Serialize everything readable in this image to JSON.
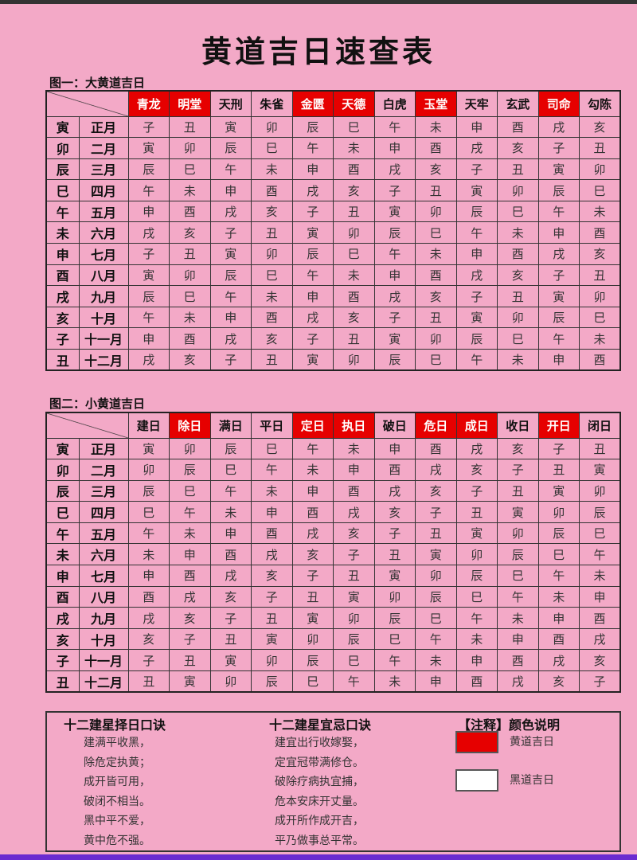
{
  "title": "黄道吉日速查表",
  "table1": {
    "caption": "图一：大黄道吉日",
    "headers": [
      {
        "label": "青龙",
        "auspicious": true
      },
      {
        "label": "明堂",
        "auspicious": true
      },
      {
        "label": "天刑",
        "auspicious": false
      },
      {
        "label": "朱雀",
        "auspicious": false
      },
      {
        "label": "金匮",
        "auspicious": true
      },
      {
        "label": "天德",
        "auspicious": true
      },
      {
        "label": "白虎",
        "auspicious": false
      },
      {
        "label": "玉堂",
        "auspicious": true
      },
      {
        "label": "天牢",
        "auspicious": false
      },
      {
        "label": "玄武",
        "auspicious": false
      },
      {
        "label": "司命",
        "auspicious": true
      },
      {
        "label": "勾陈",
        "auspicious": false
      }
    ],
    "rows": [
      {
        "branch": "寅",
        "month": "正月",
        "cells": [
          "子",
          "丑",
          "寅",
          "卯",
          "辰",
          "巳",
          "午",
          "未",
          "申",
          "酉",
          "戌",
          "亥"
        ]
      },
      {
        "branch": "卯",
        "month": "二月",
        "cells": [
          "寅",
          "卯",
          "辰",
          "巳",
          "午",
          "未",
          "申",
          "酉",
          "戌",
          "亥",
          "子",
          "丑"
        ]
      },
      {
        "branch": "辰",
        "month": "三月",
        "cells": [
          "辰",
          "巳",
          "午",
          "未",
          "申",
          "酉",
          "戌",
          "亥",
          "子",
          "丑",
          "寅",
          "卯"
        ]
      },
      {
        "branch": "巳",
        "month": "四月",
        "cells": [
          "午",
          "未",
          "申",
          "酉",
          "戌",
          "亥",
          "子",
          "丑",
          "寅",
          "卯",
          "辰",
          "巳"
        ]
      },
      {
        "branch": "午",
        "month": "五月",
        "cells": [
          "申",
          "酉",
          "戌",
          "亥",
          "子",
          "丑",
          "寅",
          "卯",
          "辰",
          "巳",
          "午",
          "未"
        ]
      },
      {
        "branch": "未",
        "month": "六月",
        "cells": [
          "戌",
          "亥",
          "子",
          "丑",
          "寅",
          "卯",
          "辰",
          "巳",
          "午",
          "未",
          "申",
          "酉"
        ]
      },
      {
        "branch": "申",
        "month": "七月",
        "cells": [
          "子",
          "丑",
          "寅",
          "卯",
          "辰",
          "巳",
          "午",
          "未",
          "申",
          "酉",
          "戌",
          "亥"
        ]
      },
      {
        "branch": "酉",
        "month": "八月",
        "cells": [
          "寅",
          "卯",
          "辰",
          "巳",
          "午",
          "未",
          "申",
          "酉",
          "戌",
          "亥",
          "子",
          "丑"
        ]
      },
      {
        "branch": "戌",
        "month": "九月",
        "cells": [
          "辰",
          "巳",
          "午",
          "未",
          "申",
          "酉",
          "戌",
          "亥",
          "子",
          "丑",
          "寅",
          "卯"
        ]
      },
      {
        "branch": "亥",
        "month": "十月",
        "cells": [
          "午",
          "未",
          "申",
          "酉",
          "戌",
          "亥",
          "子",
          "丑",
          "寅",
          "卯",
          "辰",
          "巳"
        ]
      },
      {
        "branch": "子",
        "month": "十一月",
        "cells": [
          "申",
          "酉",
          "戌",
          "亥",
          "子",
          "丑",
          "寅",
          "卯",
          "辰",
          "巳",
          "午",
          "未"
        ]
      },
      {
        "branch": "丑",
        "month": "十二月",
        "cells": [
          "戌",
          "亥",
          "子",
          "丑",
          "寅",
          "卯",
          "辰",
          "巳",
          "午",
          "未",
          "申",
          "酉"
        ]
      }
    ]
  },
  "table2": {
    "caption": "图二：小黄道吉日",
    "headers": [
      {
        "label": "建日",
        "auspicious": false
      },
      {
        "label": "除日",
        "auspicious": true
      },
      {
        "label": "满日",
        "auspicious": false
      },
      {
        "label": "平日",
        "auspicious": false
      },
      {
        "label": "定日",
        "auspicious": true
      },
      {
        "label": "执日",
        "auspicious": true
      },
      {
        "label": "破日",
        "auspicious": false
      },
      {
        "label": "危日",
        "auspicious": true
      },
      {
        "label": "成日",
        "auspicious": true
      },
      {
        "label": "收日",
        "auspicious": false
      },
      {
        "label": "开日",
        "auspicious": true
      },
      {
        "label": "闭日",
        "auspicious": false
      }
    ],
    "rows": [
      {
        "branch": "寅",
        "month": "正月",
        "cells": [
          "寅",
          "卯",
          "辰",
          "巳",
          "午",
          "未",
          "申",
          "酉",
          "戌",
          "亥",
          "子",
          "丑"
        ]
      },
      {
        "branch": "卯",
        "month": "二月",
        "cells": [
          "卯",
          "辰",
          "巳",
          "午",
          "未",
          "申",
          "酉",
          "戌",
          "亥",
          "子",
          "丑",
          "寅"
        ]
      },
      {
        "branch": "辰",
        "month": "三月",
        "cells": [
          "辰",
          "巳",
          "午",
          "未",
          "申",
          "酉",
          "戌",
          "亥",
          "子",
          "丑",
          "寅",
          "卯"
        ]
      },
      {
        "branch": "巳",
        "month": "四月",
        "cells": [
          "巳",
          "午",
          "未",
          "申",
          "酉",
          "戌",
          "亥",
          "子",
          "丑",
          "寅",
          "卯",
          "辰"
        ]
      },
      {
        "branch": "午",
        "month": "五月",
        "cells": [
          "午",
          "未",
          "申",
          "酉",
          "戌",
          "亥",
          "子",
          "丑",
          "寅",
          "卯",
          "辰",
          "巳"
        ]
      },
      {
        "branch": "未",
        "month": "六月",
        "cells": [
          "未",
          "申",
          "酉",
          "戌",
          "亥",
          "子",
          "丑",
          "寅",
          "卯",
          "辰",
          "巳",
          "午"
        ]
      },
      {
        "branch": "申",
        "month": "七月",
        "cells": [
          "申",
          "酉",
          "戌",
          "亥",
          "子",
          "丑",
          "寅",
          "卯",
          "辰",
          "巳",
          "午",
          "未"
        ]
      },
      {
        "branch": "酉",
        "month": "八月",
        "cells": [
          "酉",
          "戌",
          "亥",
          "子",
          "丑",
          "寅",
          "卯",
          "辰",
          "巳",
          "午",
          "未",
          "申"
        ]
      },
      {
        "branch": "戌",
        "month": "九月",
        "cells": [
          "戌",
          "亥",
          "子",
          "丑",
          "寅",
          "卯",
          "辰",
          "巳",
          "午",
          "未",
          "申",
          "酉"
        ]
      },
      {
        "branch": "亥",
        "month": "十月",
        "cells": [
          "亥",
          "子",
          "丑",
          "寅",
          "卯",
          "辰",
          "巳",
          "午",
          "未",
          "申",
          "酉",
          "戌"
        ]
      },
      {
        "branch": "子",
        "month": "十一月",
        "cells": [
          "子",
          "丑",
          "寅",
          "卯",
          "辰",
          "巳",
          "午",
          "未",
          "申",
          "酉",
          "戌",
          "亥"
        ]
      },
      {
        "branch": "丑",
        "month": "十二月",
        "cells": [
          "丑",
          "寅",
          "卯",
          "辰",
          "巳",
          "午",
          "未",
          "申",
          "酉",
          "戌",
          "亥",
          "子"
        ]
      }
    ]
  },
  "notes": {
    "rule1": {
      "title": "十二建星择日口诀",
      "lines": [
        "建满平收黑，",
        "除危定执黄；",
        "成开皆可用，",
        "破闭不相当。",
        "黑中平不爱，",
        "黄中危不强。"
      ]
    },
    "rule2": {
      "title": "十二建星宜忌口诀",
      "lines": [
        "建宜出行收嫁娶，",
        "定宜冠带满修仓。",
        "破除疗病执宜捕，",
        "危本安床开丈量。",
        "成开所作成开吉，",
        "平乃做事总平常。"
      ]
    },
    "legend": {
      "title": "【注释】颜色说明",
      "items": [
        {
          "label": "黄道吉日",
          "color": "#e60000"
        },
        {
          "label": "黑道吉日",
          "color": "#ffffff"
        }
      ]
    }
  }
}
